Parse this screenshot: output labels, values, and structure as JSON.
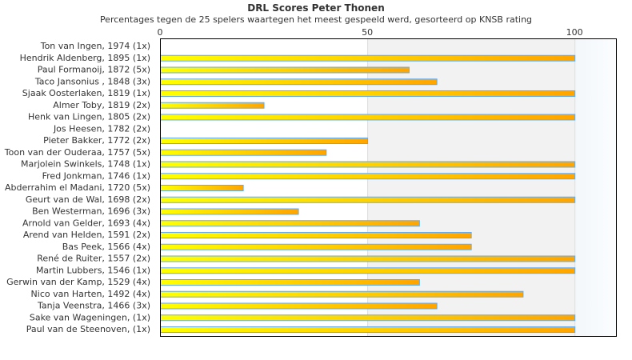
{
  "chart_data": {
    "type": "bar",
    "orientation": "horizontal",
    "title": "DRL Scores Peter Thonen",
    "subtitle": "Percentages tegen de 25 spelers waartegen het meest gespeeld werd, gesorteerd op KNSB rating",
    "xlim": [
      0,
      110
    ],
    "xticks": [
      "0",
      "50",
      "100"
    ],
    "xtick_values": [
      0,
      50,
      100
    ],
    "bands": [
      {
        "from": 50,
        "to": 100,
        "color": "#f2f2f2"
      },
      {
        "from": 100,
        "to": 110,
        "color": "#f5f9fc"
      }
    ],
    "categories": [
      "Ton van Ingen, 1974 (1x)",
      "Hendrik Aldenberg, 1895 (1x)",
      "Paul Formanoij, 1872 (5x)",
      "Taco Jansonius , 1848 (3x)",
      "Sjaak Oosterlaken, 1819 (1x)",
      "Almer Toby, 1819 (2x)",
      "Henk van Lingen, 1805 (2x)",
      "Jos Heesen, 1782 (2x)",
      "Pieter Bakker, 1772 (2x)",
      "Toon van der Ouderaa, 1757 (5x)",
      "Marjolein Swinkels, 1748 (1x)",
      "Fred Jonkman, 1746 (1x)",
      "Abderrahim el Madani, 1720 (5x)",
      "Geurt van de Wal, 1698 (2x)",
      "Ben Westerman, 1696 (3x)",
      "Arnold van Gelder, 1693 (4x)",
      "Arend van Helden, 1591 (2x)",
      "Bas Peek, 1566 (4x)",
      "René de Ruiter, 1557 (2x)",
      "Martin Lubbers, 1546 (1x)",
      "Gerwin van der Kamp, 1529 (4x)",
      "Nico van Harten, 1492 (4x)",
      "Tanja Veenstra, 1466 (3x)",
      "Sake van Wageningen,  (1x)",
      "Paul van de Steenoven,  (1x)"
    ],
    "values": [
      0,
      100,
      60,
      66.7,
      100,
      25,
      100,
      0,
      50,
      40,
      100,
      100,
      20,
      100,
      33.3,
      62.5,
      75,
      75,
      100,
      100,
      62.5,
      87.5,
      66.7,
      100,
      100
    ],
    "colors": {
      "bar_start": "#ffff00",
      "bar_end": "#ffa500",
      "bar_border": "#66aaee",
      "axis": "#000000",
      "grid": "#dddddd"
    }
  }
}
